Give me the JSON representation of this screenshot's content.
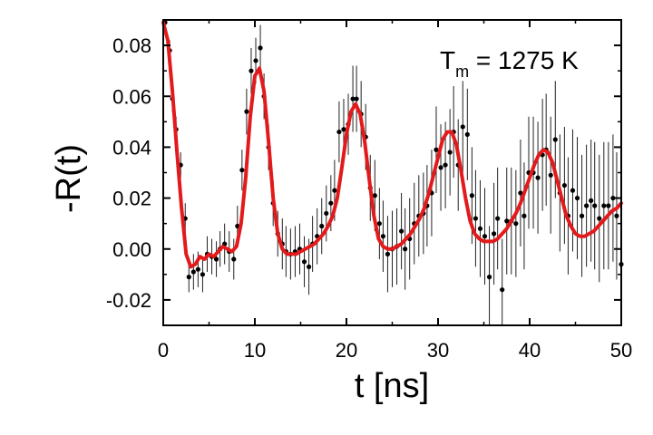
{
  "chart_data": {
    "type": "scatter",
    "xlabel": "t [ns]",
    "ylabel": "-R(t)",
    "xlim": [
      0,
      50
    ],
    "ylim": [
      -0.03,
      0.09
    ],
    "xticks": [
      "0",
      "10",
      "20",
      "30",
      "40",
      "50"
    ],
    "xtick_values": [
      0,
      10,
      20,
      30,
      40,
      50
    ],
    "yticks": [
      "-0.02",
      "0.00",
      "0.02",
      "0.04",
      "0.06",
      "0.08"
    ],
    "ytick_values": [
      -0.02,
      0.0,
      0.02,
      0.04,
      0.06,
      0.08
    ],
    "annotation": {
      "main": "T",
      "sub": "m",
      "rest": " = 1275 K"
    },
    "grid": false,
    "fit_color": "#e31a1c",
    "point_color": "#000000",
    "series": [
      {
        "kind": "points_with_errorbars",
        "x": [
          0.2,
          0.7,
          1.0,
          1.4,
          1.9,
          2.4,
          2.8,
          3.3,
          3.8,
          4.3,
          4.8,
          5.3,
          5.8,
          6.2,
          6.7,
          7.2,
          7.7,
          8.1,
          8.6,
          9.1,
          9.6,
          10.1,
          10.6,
          11.0,
          11.5,
          12.0,
          12.5,
          13.0,
          13.4,
          13.9,
          14.4,
          14.9,
          15.4,
          15.9,
          16.3,
          16.8,
          17.3,
          17.8,
          18.3,
          18.7,
          19.2,
          19.7,
          20.2,
          20.7,
          21.1,
          21.6,
          22.1,
          22.6,
          23.1,
          23.6,
          24.0,
          24.5,
          25.0,
          25.5,
          26.0,
          26.4,
          26.9,
          27.4,
          27.9,
          28.4,
          28.8,
          29.3,
          29.8,
          30.3,
          30.8,
          31.3,
          31.7,
          32.2,
          32.7,
          33.2,
          33.7,
          34.1,
          34.6,
          35.1,
          35.6,
          36.1,
          36.5,
          37.0,
          37.5,
          38.0,
          38.5,
          39.0,
          39.4,
          39.9,
          40.4,
          40.9,
          41.4,
          41.8,
          42.3,
          42.8,
          43.3,
          43.8,
          44.2,
          44.7,
          45.2,
          45.7,
          46.2,
          46.7,
          47.1,
          47.6,
          48.1,
          48.6,
          49.1,
          49.5,
          50.0
        ],
        "y": [
          0.089,
          0.078,
          0.059,
          0.047,
          0.033,
          0.012,
          -0.011,
          -0.009,
          -0.008,
          -0.01,
          -0.002,
          -0.003,
          -0.004,
          0.0,
          0.002,
          -0.001,
          -0.004,
          0.009,
          0.031,
          0.054,
          0.07,
          0.074,
          0.079,
          0.06,
          0.04,
          0.018,
          0.006,
          0.002,
          -0.001,
          -0.002,
          -0.001,
          0.0,
          -0.005,
          -0.007,
          0.002,
          0.005,
          0.009,
          0.014,
          0.018,
          0.023,
          0.046,
          0.047,
          0.049,
          0.059,
          0.059,
          0.053,
          0.044,
          0.024,
          0.021,
          0.01,
          0.005,
          -0.002,
          0.0,
          0.001,
          0.007,
          0.0,
          0.004,
          0.01,
          0.013,
          0.014,
          0.017,
          0.022,
          0.039,
          0.032,
          0.033,
          0.038,
          0.046,
          0.033,
          0.048,
          0.045,
          0.021,
          0.012,
          0.008,
          0.005,
          -0.011,
          0.006,
          0.012,
          -0.016,
          0.011,
          0.011,
          0.01,
          0.022,
          0.013,
          0.03,
          0.03,
          0.028,
          0.037,
          0.039,
          0.029,
          0.043,
          0.022,
          0.025,
          0.013,
          0.023,
          0.02,
          0.013,
          0.017,
          0.019,
          0.017,
          0.012,
          0.017,
          0.017,
          0.02,
          0.013,
          -0.006
        ],
        "err": [
          0.004,
          0.004,
          0.005,
          0.005,
          0.005,
          0.006,
          0.006,
          0.007,
          0.007,
          0.007,
          0.007,
          0.007,
          0.007,
          0.007,
          0.008,
          0.008,
          0.008,
          0.008,
          0.008,
          0.009,
          0.009,
          0.009,
          0.009,
          0.009,
          0.009,
          0.009,
          0.009,
          0.01,
          0.01,
          0.01,
          0.01,
          0.01,
          0.01,
          0.011,
          0.011,
          0.011,
          0.011,
          0.011,
          0.011,
          0.012,
          0.012,
          0.012,
          0.012,
          0.013,
          0.013,
          0.013,
          0.013,
          0.013,
          0.014,
          0.014,
          0.014,
          0.015,
          0.015,
          0.015,
          0.015,
          0.016,
          0.016,
          0.016,
          0.016,
          0.016,
          0.016,
          0.017,
          0.017,
          0.017,
          0.017,
          0.017,
          0.018,
          0.018,
          0.018,
          0.018,
          0.019,
          0.019,
          0.019,
          0.019,
          0.02,
          0.02,
          0.02,
          0.02,
          0.021,
          0.021,
          0.021,
          0.021,
          0.021,
          0.022,
          0.022,
          0.022,
          0.022,
          0.022,
          0.023,
          0.023,
          0.023,
          0.023,
          0.023,
          0.024,
          0.024,
          0.024,
          0.024,
          0.024,
          0.025,
          0.025,
          0.025,
          0.025,
          0.025,
          0.025,
          0.025
        ]
      },
      {
        "kind": "fit_line",
        "x": [
          0,
          0.5,
          1,
          1.5,
          2,
          2.5,
          3,
          3.5,
          4,
          4.5,
          5,
          5.5,
          6,
          6.5,
          7,
          7.5,
          8,
          8.5,
          9,
          9.5,
          10,
          10.5,
          11,
          11.5,
          12,
          12.5,
          13,
          13.5,
          14,
          14.5,
          15,
          15.5,
          16,
          16.5,
          17,
          17.5,
          18,
          18.5,
          19,
          19.5,
          20,
          20.5,
          21,
          21.5,
          22,
          22.5,
          23,
          23.5,
          24,
          24.5,
          25,
          25.5,
          26,
          26.5,
          27,
          27.5,
          28,
          28.5,
          29,
          29.5,
          30,
          30.5,
          31,
          31.5,
          32,
          32.5,
          33,
          33.5,
          34,
          34.5,
          35,
          35.5,
          36,
          36.5,
          37,
          37.5,
          38,
          38.5,
          39,
          39.5,
          40,
          40.5,
          41,
          41.5,
          42,
          42.5,
          43,
          43.5,
          44,
          44.5,
          45,
          45.5,
          46,
          46.5,
          47,
          47.5,
          48,
          48.5,
          49,
          49.5,
          50
        ],
        "y": [
          0.089,
          0.082,
          0.062,
          0.038,
          0.016,
          -0.002,
          -0.007,
          -0.006,
          -0.003,
          -0.004,
          -0.002,
          -0.003,
          -0.001,
          0.001,
          0.0,
          -0.001,
          0.001,
          0.01,
          0.028,
          0.052,
          0.068,
          0.071,
          0.062,
          0.042,
          0.02,
          0.006,
          0.0,
          -0.002,
          -0.002,
          -0.002,
          -0.001,
          0.0,
          0.001,
          0.002,
          0.004,
          0.006,
          0.009,
          0.013,
          0.02,
          0.032,
          0.045,
          0.054,
          0.057,
          0.053,
          0.042,
          0.027,
          0.013,
          0.004,
          0.001,
          0.0,
          0.0,
          0.001,
          0.002,
          0.004,
          0.006,
          0.009,
          0.012,
          0.016,
          0.022,
          0.029,
          0.036,
          0.043,
          0.046,
          0.046,
          0.041,
          0.031,
          0.02,
          0.011,
          0.006,
          0.004,
          0.003,
          0.003,
          0.003,
          0.004,
          0.006,
          0.008,
          0.011,
          0.014,
          0.018,
          0.023,
          0.028,
          0.033,
          0.037,
          0.039,
          0.038,
          0.034,
          0.027,
          0.02,
          0.013,
          0.009,
          0.006,
          0.005,
          0.005,
          0.006,
          0.007,
          0.009,
          0.011,
          0.013,
          0.015,
          0.016,
          0.018
        ]
      }
    ]
  }
}
